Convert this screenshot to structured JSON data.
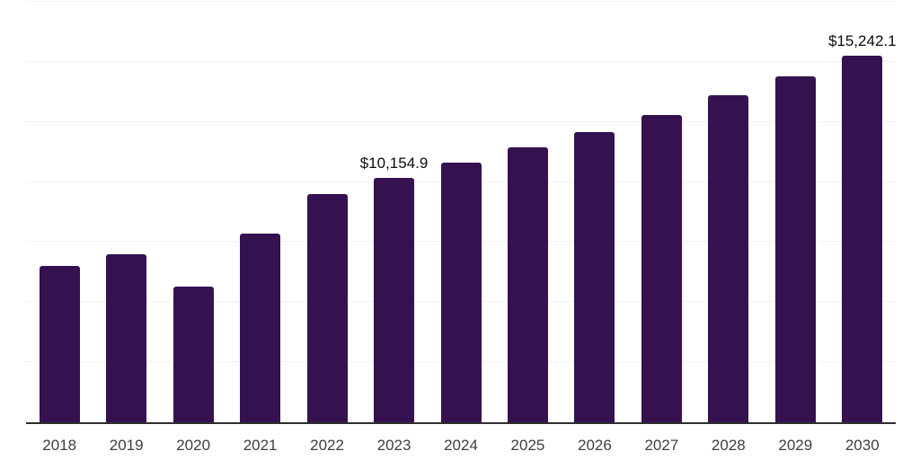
{
  "chart_data": {
    "type": "bar",
    "title": "",
    "xlabel": "",
    "ylabel": "",
    "categories": [
      "2018",
      "2019",
      "2020",
      "2021",
      "2022",
      "2023",
      "2024",
      "2025",
      "2026",
      "2027",
      "2028",
      "2029",
      "2030"
    ],
    "values": [
      6510,
      6985,
      5650,
      7855,
      9500,
      10154.9,
      10810,
      11430,
      12070,
      12780,
      13610,
      14400,
      15242.1
    ],
    "data_labels": {
      "2023": "$10,154.9",
      "2030": "$15,242.1"
    },
    "ylim": [
      0,
      17500
    ],
    "gridline_step": 2500,
    "grid": true,
    "legend_position": "none",
    "colors": {
      "bar": "#361150",
      "gridline": "#f1f1f4",
      "axis_line": "#2e2e2e",
      "data_label_text": "#0d0d0d",
      "axis_label_text": "#3f3f3f",
      "background": "#ffffff"
    }
  }
}
